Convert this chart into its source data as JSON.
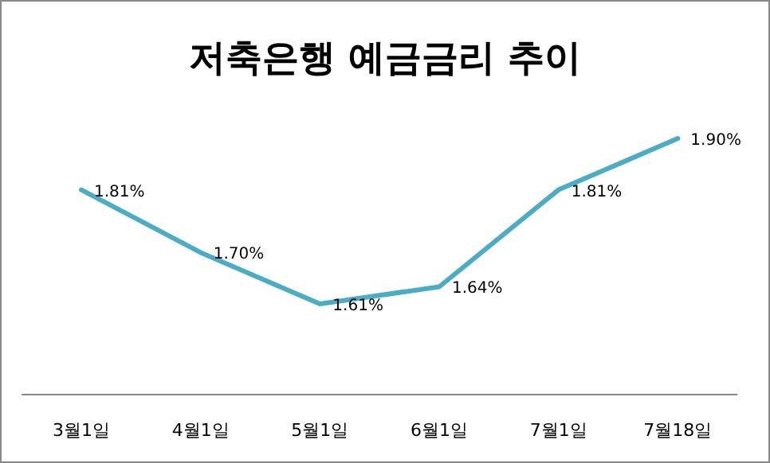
{
  "chart_data": {
    "type": "line",
    "title": "저축은행 예금금리 추이",
    "categories": [
      "3월1일",
      "4월1일",
      "5월1일",
      "6월1일",
      "7월1일",
      "7월18일"
    ],
    "series": [
      {
        "color": "#4bacc6",
        "values": [
          1.81,
          1.7,
          1.61,
          1.64,
          1.81,
          1.9
        ],
        "value_labels": [
          "1.81%",
          "1.70%",
          "1.61%",
          "1.64%",
          "1.81%",
          "1.90%"
        ]
      }
    ],
    "tick_labels": "x",
    "marker": "none",
    "line_style": "solid"
  }
}
